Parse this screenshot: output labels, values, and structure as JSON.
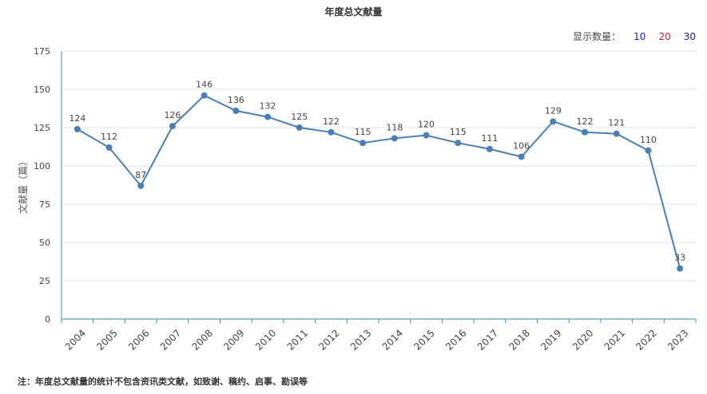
{
  "header": {
    "count_label": "显示数量：",
    "options": [
      {
        "label": "10",
        "color": "#1a1acc"
      },
      {
        "label": "20",
        "color": "#e02020"
      },
      {
        "label": "30",
        "color": "#1a1a99"
      }
    ]
  },
  "note": "注：年度总文献量的统计不包含资讯类文献，如致谢、稿约、启事、勘误等",
  "chart_data": {
    "type": "line",
    "title": "年度总文献量",
    "xlabel": "",
    "ylabel": "文献量（篇）",
    "ylim": [
      0,
      175
    ],
    "yticks": [
      0,
      25,
      50,
      75,
      100,
      125,
      150,
      175
    ],
    "grid": true,
    "color": "#4a7fb5",
    "categories": [
      "2004",
      "2005",
      "2006",
      "2007",
      "2008",
      "2009",
      "2010",
      "2011",
      "2012",
      "2013",
      "2014",
      "2015",
      "2016",
      "2017",
      "2018",
      "2019",
      "2020",
      "2021",
      "2022",
      "2023"
    ],
    "values": [
      124,
      112,
      87,
      126,
      146,
      136,
      132,
      125,
      122,
      115,
      118,
      120,
      115,
      111,
      106,
      129,
      122,
      121,
      110,
      33
    ]
  }
}
